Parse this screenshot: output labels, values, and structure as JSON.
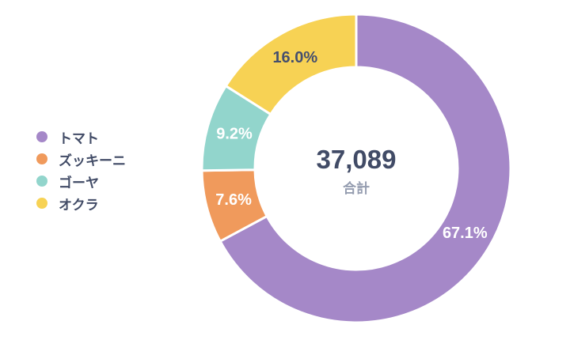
{
  "chart_data": {
    "type": "pie",
    "subtype": "donut",
    "title": "",
    "categories": [
      "トマト",
      "ズッキーニ",
      "ゴーヤ",
      "オクラ"
    ],
    "values": [
      67.1,
      7.6,
      9.2,
      16.0
    ],
    "unit": "%",
    "slice_labels": [
      "67.1%",
      "7.6%",
      "9.2%",
      "16.0%"
    ],
    "colors": [
      "#a588c8",
      "#f09a5c",
      "#92d5cc",
      "#f7d254"
    ],
    "slice_label_colors": [
      "#ffffff",
      "#ffffff",
      "#ffffff",
      "#454f6e"
    ],
    "start_angle_deg": 0,
    "direction": "clockwise",
    "center_value": "37,089",
    "center_label": "合計",
    "legend_position": "left",
    "gap_color": "#ffffff"
  },
  "colors": {
    "background": "#ffffff",
    "text_primary": "#414b66",
    "text_muted": "#959db0"
  }
}
